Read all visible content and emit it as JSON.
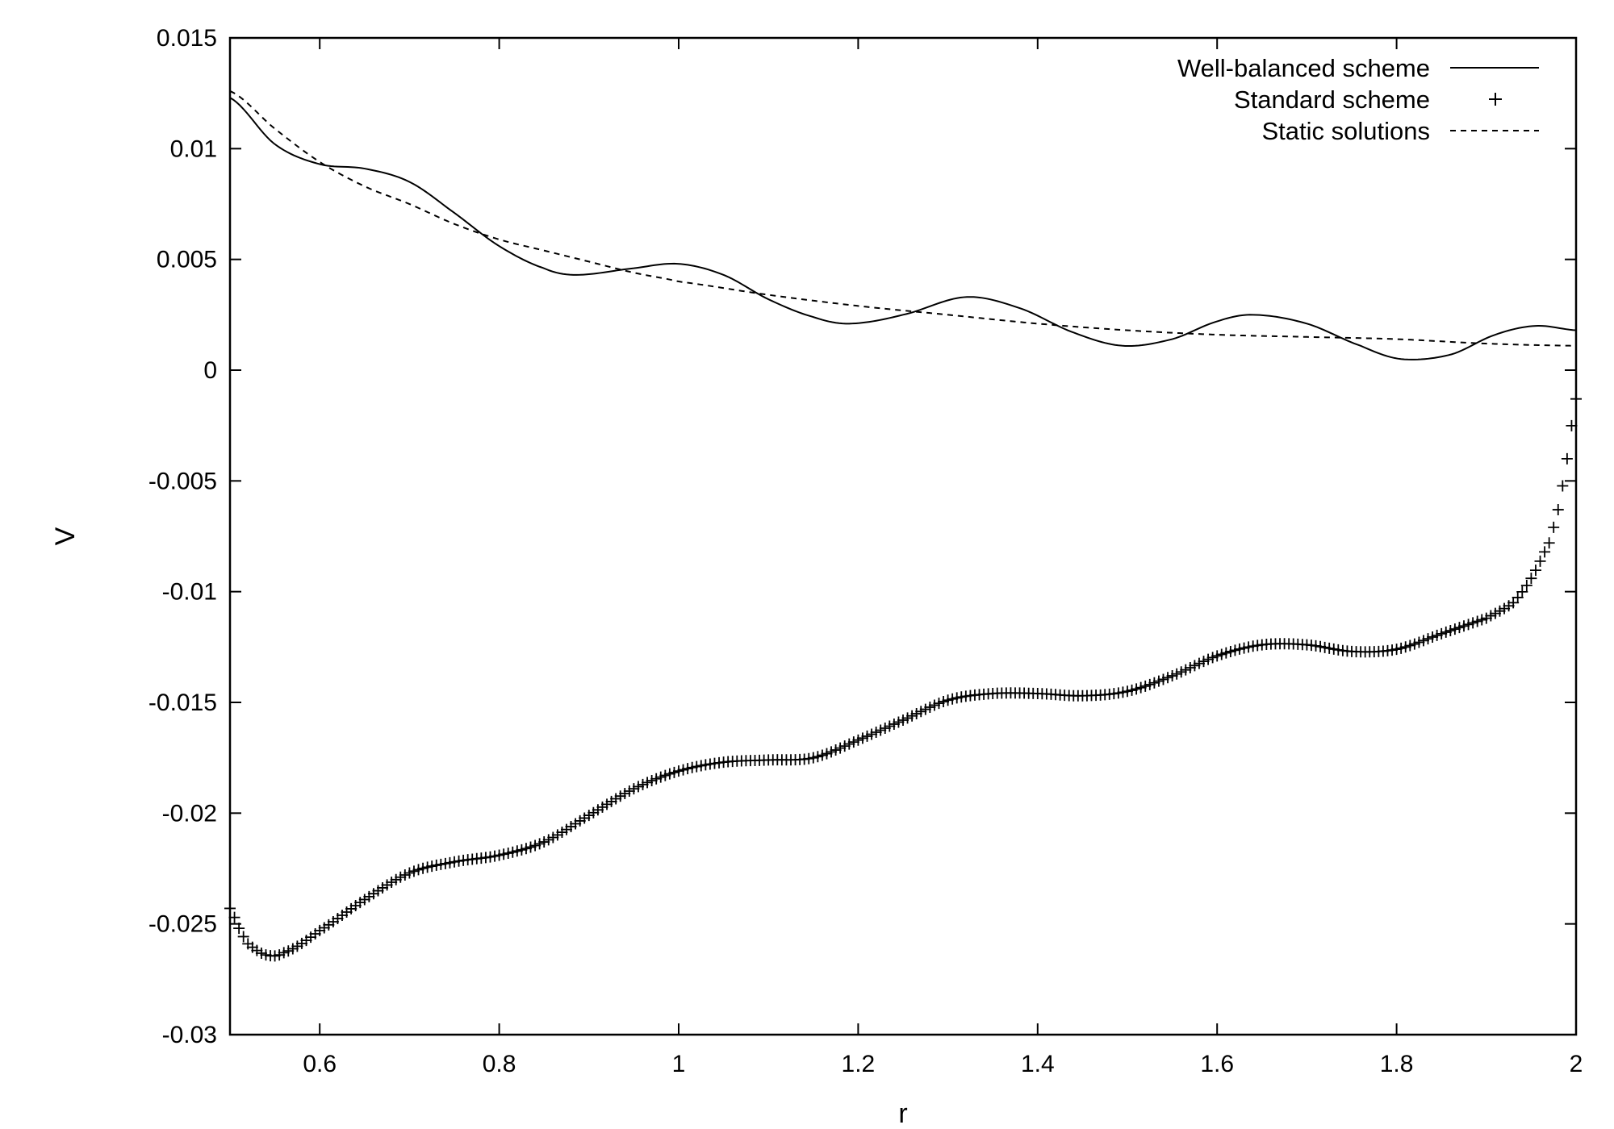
{
  "chart_data": {
    "type": "line",
    "xlabel": "r",
    "ylabel": "V",
    "xlim": [
      0.5,
      2
    ],
    "ylim": [
      -0.03,
      0.015
    ],
    "x_ticks": [
      "0.6",
      "0.8",
      "1",
      "1.2",
      "1.4",
      "1.6",
      "1.8",
      "2"
    ],
    "y_ticks": [
      "0.015",
      "0.01",
      "0.005",
      "0",
      "-0.005",
      "-0.01",
      "-0.015",
      "-0.02",
      "-0.025",
      "-0.03"
    ],
    "grid": false,
    "legend_position": "top-right",
    "series": [
      {
        "name": "Well-balanced scheme",
        "style": "solid",
        "x": [
          0.5,
          0.55,
          0.6,
          0.65,
          0.7,
          0.75,
          0.8,
          0.85,
          0.885,
          0.95,
          1.0,
          1.05,
          1.1,
          1.15,
          1.19,
          1.25,
          1.32,
          1.38,
          1.44,
          1.495,
          1.55,
          1.6,
          1.64,
          1.7,
          1.76,
          1.805,
          1.86,
          1.91,
          1.955,
          2.0
        ],
        "y": [
          0.0123,
          0.0102,
          0.0093,
          0.0091,
          0.0085,
          0.0071,
          0.0056,
          0.0046,
          0.0043,
          0.0046,
          0.0048,
          0.0043,
          0.0032,
          0.0024,
          0.0021,
          0.0025,
          0.0033,
          0.0028,
          0.0017,
          0.0011,
          0.0014,
          0.0022,
          0.0025,
          0.0021,
          0.0011,
          0.0005,
          0.0007,
          0.0016,
          0.002,
          0.0018
        ]
      },
      {
        "name": "Standard scheme",
        "style": "points",
        "x": [
          0.5,
          0.51,
          0.52,
          0.54,
          0.56,
          0.6,
          0.65,
          0.7,
          0.75,
          0.8,
          0.85,
          0.9,
          0.95,
          1.0,
          1.05,
          1.1,
          1.15,
          1.2,
          1.25,
          1.3,
          1.35,
          1.4,
          1.45,
          1.5,
          1.55,
          1.6,
          1.65,
          1.7,
          1.75,
          1.8,
          1.85,
          1.9,
          1.93,
          1.95,
          1.97,
          1.98,
          1.99,
          2.0
        ],
        "y": [
          -0.0243,
          -0.0252,
          -0.0259,
          -0.0264,
          -0.0263,
          -0.0253,
          -0.0239,
          -0.0227,
          -0.0222,
          -0.0219,
          -0.0213,
          -0.0201,
          -0.0189,
          -0.0181,
          -0.0177,
          -0.0176,
          -0.0175,
          -0.0167,
          -0.0158,
          -0.0149,
          -0.0146,
          -0.0146,
          -0.0147,
          -0.0145,
          -0.0138,
          -0.0129,
          -0.0124,
          -0.0124,
          -0.0127,
          -0.0126,
          -0.0119,
          -0.0112,
          -0.0105,
          -0.0094,
          -0.0078,
          -0.0063,
          -0.004,
          -0.0013
        ]
      },
      {
        "name": "Static solutions",
        "style": "dashed",
        "x": [
          0.5,
          0.55,
          0.6,
          0.65,
          0.7,
          0.75,
          0.8,
          0.85,
          0.9,
          0.95,
          1.0,
          1.1,
          1.2,
          1.3,
          1.4,
          1.5,
          1.6,
          1.7,
          1.8,
          1.9,
          2.0
        ],
        "y": [
          0.0126,
          0.0109,
          0.0094,
          0.0083,
          0.0075,
          0.0066,
          0.0059,
          0.0054,
          0.0049,
          0.0044,
          0.004,
          0.0034,
          0.0029,
          0.0025,
          0.0021,
          0.0018,
          0.0016,
          0.0015,
          0.0014,
          0.0012,
          0.0011
        ]
      }
    ]
  }
}
